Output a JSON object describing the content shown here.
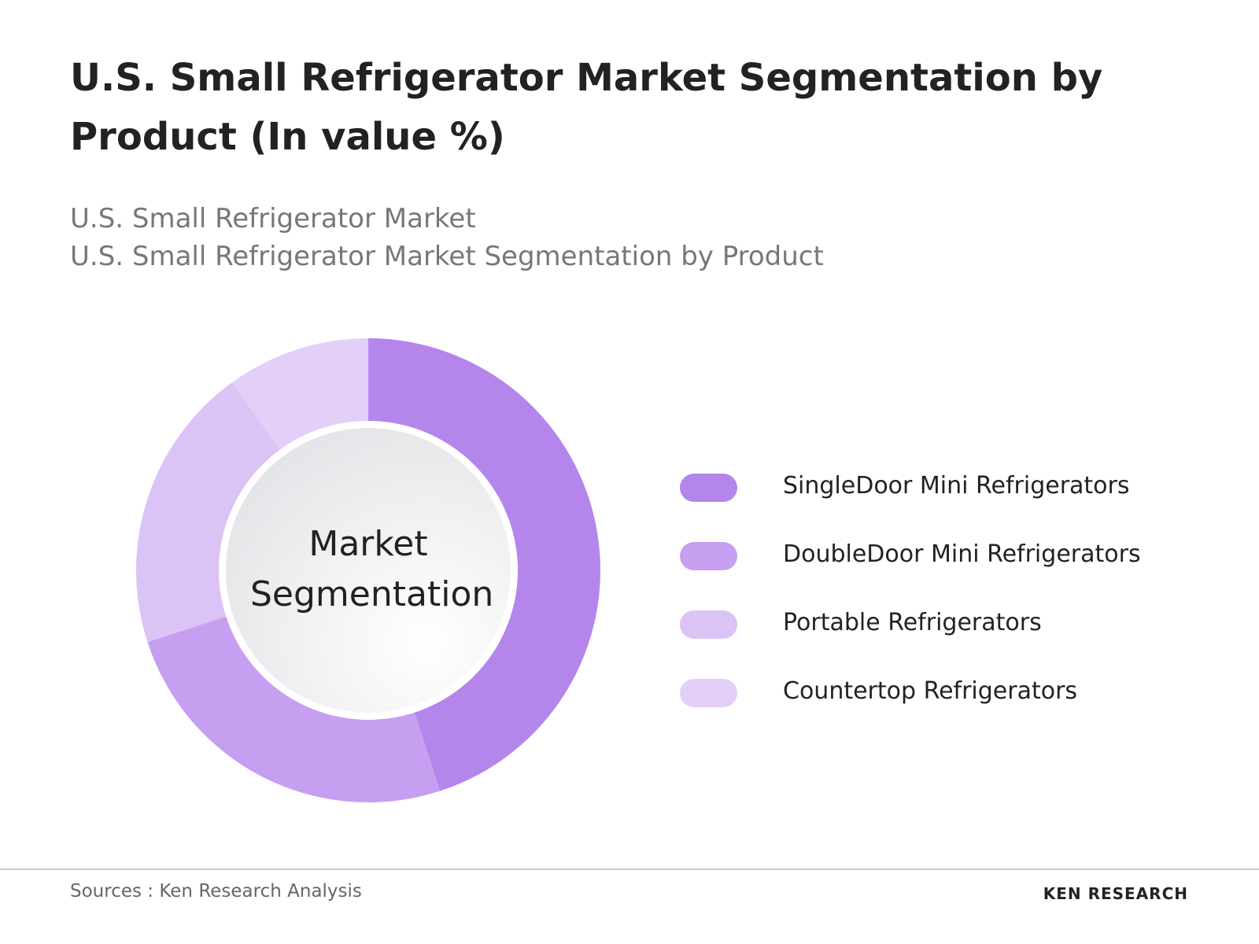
{
  "chart_data": {
    "type": "donut",
    "title": "U.S. Small Refrigerator Market Segmentation by Product (In value %)",
    "subtitle": [
      "U.S. Small Refrigerator Market",
      "U.S. Small Refrigerator Market Segmentation by Product"
    ],
    "center_label": "Market Segmentation",
    "categories": [
      "SingleDoor Mini Refrigerators",
      "DoubleDoor Mini Refrigerators",
      "Portable Refrigerators",
      "Countertop Refrigerators"
    ],
    "values": [
      45,
      25,
      20,
      10
    ],
    "colors": [
      "#b486ec",
      "#c69ff0",
      "#dbc3f6",
      "#e4cff8"
    ],
    "legend": "right"
  },
  "footer": {
    "source": "Sources : Ken Research Analysis",
    "brand": "KEN RESEARCH"
  }
}
